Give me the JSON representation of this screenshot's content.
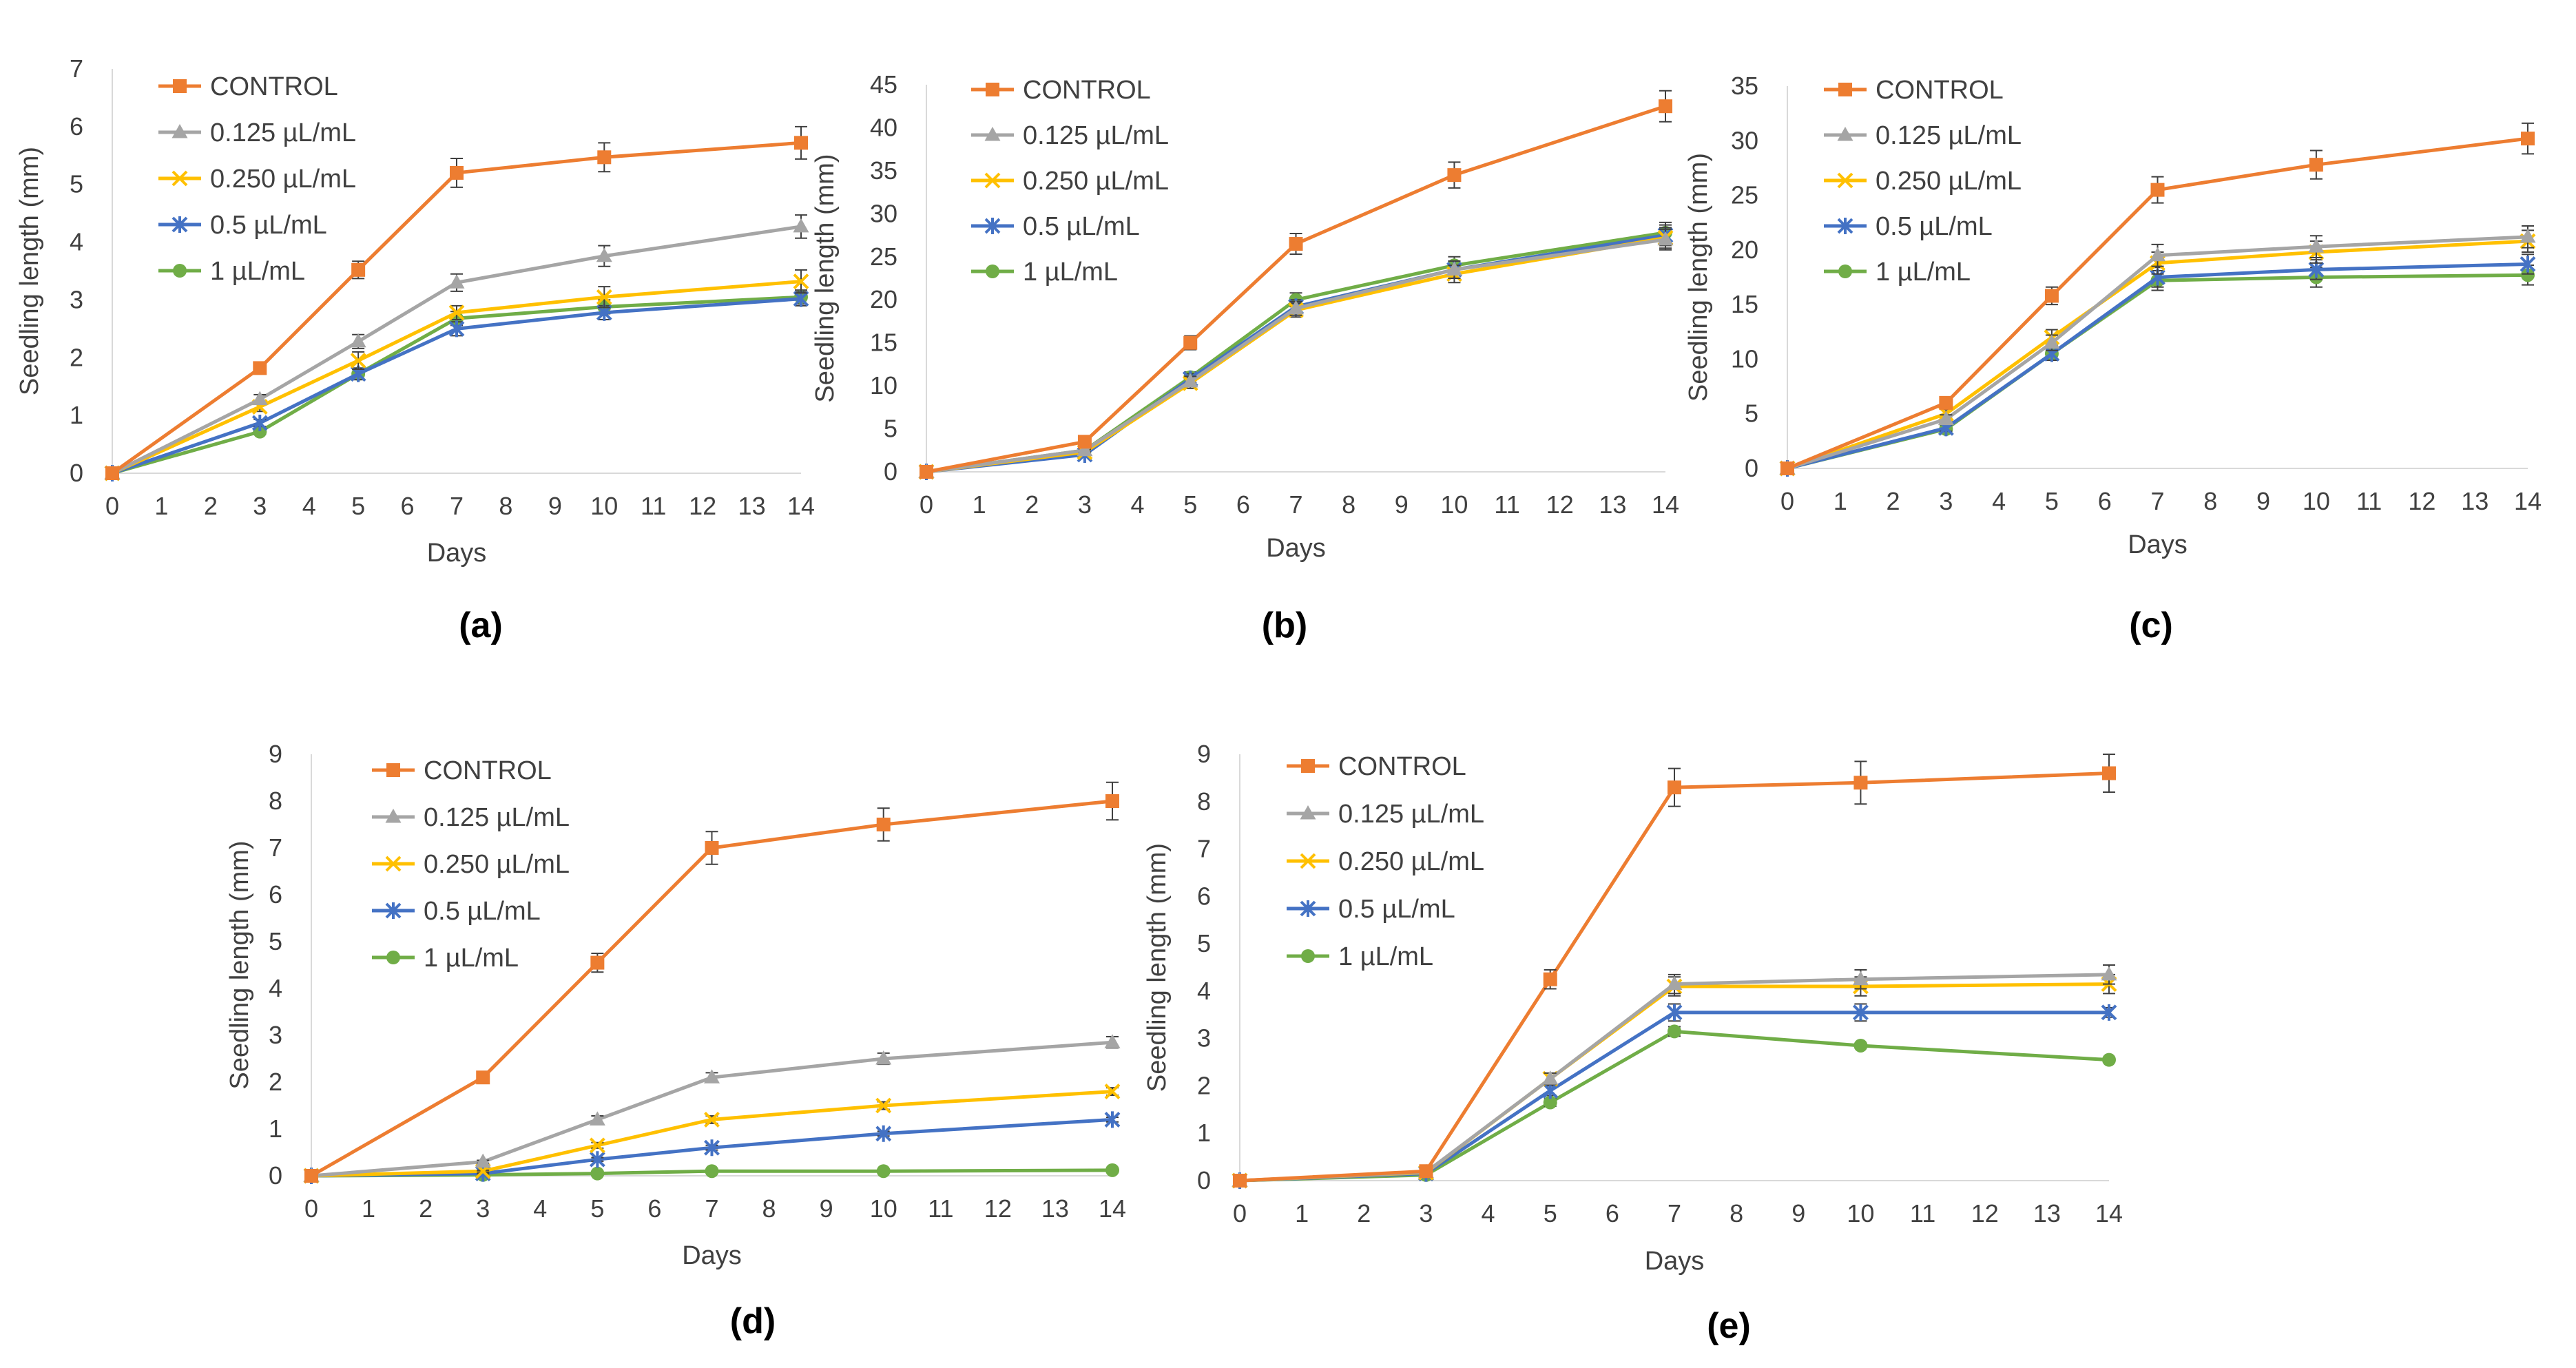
{
  "figure": {
    "colors": {
      "CONTROL": "#ED7D31",
      "0.125 µL/mL": "#A5A5A5",
      "0.250 µL/mL": "#FFC000",
      "0.5 µL/mL": "#4472C4",
      "1 µL/mL": "#70AD47",
      "axis": "#D9D9D9",
      "text": "#404040"
    },
    "markers": {
      "CONTROL": "square",
      "0.125 µL/mL": "triangle",
      "0.250 µL/mL": "x",
      "0.5 µL/mL": "star",
      "1 µL/mL": "circle"
    }
  },
  "chart_data": [
    {
      "type": "line",
      "label": "(a)",
      "xlabel": "Days",
      "ylabel": "Seedling length (mm)",
      "x_ticks": [
        0,
        1,
        2,
        3,
        4,
        5,
        6,
        7,
        8,
        9,
        10,
        11,
        12,
        13,
        14
      ],
      "xlim": [
        0,
        14
      ],
      "ylim": [
        0,
        7
      ],
      "y_ticks": [
        0,
        1,
        2,
        3,
        4,
        5,
        6,
        7
      ],
      "x": [
        0,
        3,
        5,
        7,
        10,
        14
      ],
      "series": [
        {
          "name": "CONTROL",
          "values": [
            0,
            1.82,
            3.52,
            5.2,
            5.47,
            5.72
          ],
          "errors": [
            0,
            0.08,
            0.15,
            0.25,
            0.25,
            0.28
          ]
        },
        {
          "name": "0.125 µL/mL",
          "values": [
            0,
            1.28,
            2.28,
            3.3,
            3.76,
            4.27
          ],
          "errors": [
            0,
            0.08,
            0.12,
            0.15,
            0.18,
            0.2
          ]
        },
        {
          "name": "0.250 µL/mL",
          "values": [
            0,
            1.15,
            1.95,
            2.78,
            3.05,
            3.32
          ],
          "errors": [
            0,
            0.08,
            0.15,
            0.12,
            0.18,
            0.2
          ]
        },
        {
          "name": "0.5 µL/mL",
          "values": [
            0,
            0.87,
            1.72,
            2.5,
            2.78,
            3.02
          ],
          "errors": [
            0,
            0.06,
            0.1,
            0.12,
            0.12,
            0.12
          ]
        },
        {
          "name": "1 µL/mL",
          "values": [
            0,
            0.72,
            1.72,
            2.68,
            2.88,
            3.05
          ],
          "errors": [
            0,
            0.05,
            0.1,
            0.12,
            0.12,
            0.12
          ]
        }
      ]
    },
    {
      "type": "line",
      "label": "(b)",
      "xlabel": "Days",
      "ylabel": "Seedling length (mm)",
      "x_ticks": [
        0,
        1,
        2,
        3,
        4,
        5,
        6,
        7,
        8,
        9,
        10,
        11,
        12,
        13,
        14
      ],
      "xlim": [
        0,
        14
      ],
      "ylim": [
        0,
        45
      ],
      "y_ticks": [
        0,
        5,
        10,
        15,
        20,
        25,
        30,
        35,
        40,
        45
      ],
      "x": [
        0,
        3,
        5,
        7,
        10,
        14
      ],
      "series": [
        {
          "name": "CONTROL",
          "values": [
            0,
            3.5,
            15,
            26.5,
            34.5,
            42.5
          ],
          "errors": [
            0,
            0.5,
            0.8,
            1.2,
            1.5,
            1.8
          ]
        },
        {
          "name": "0.125 µL/mL",
          "values": [
            0,
            2.5,
            10.5,
            19,
            23.5,
            27
          ],
          "errors": [
            0,
            0.3,
            0.6,
            0.8,
            1,
            1.2
          ]
        },
        {
          "name": "0.250 µL/mL",
          "values": [
            0,
            2.3,
            10.3,
            18.8,
            23,
            27.2
          ],
          "errors": [
            0,
            0.3,
            0.6,
            0.8,
            1,
            1.2
          ]
        },
        {
          "name": "0.5 µL/mL",
          "values": [
            0,
            2,
            10.8,
            19.2,
            23.5,
            27.5
          ],
          "errors": [
            0,
            0.3,
            0.6,
            0.8,
            1,
            1.2
          ]
        },
        {
          "name": "1 µL/mL",
          "values": [
            0,
            2.5,
            11,
            20,
            24,
            27.8
          ],
          "errors": [
            0,
            0.3,
            0.6,
            0.8,
            1,
            1.2
          ]
        }
      ]
    },
    {
      "type": "line",
      "label": "(c)",
      "xlabel": "Days",
      "ylabel": "Seedling length (mm)",
      "x_ticks": [
        0,
        1,
        2,
        3,
        4,
        5,
        6,
        7,
        8,
        9,
        10,
        11,
        12,
        13,
        14
      ],
      "xlim": [
        0,
        14
      ],
      "ylim": [
        0,
        35
      ],
      "y_ticks": [
        0,
        5,
        10,
        15,
        20,
        25,
        30,
        35
      ],
      "x": [
        0,
        3,
        5,
        7,
        10,
        14
      ],
      "series": [
        {
          "name": "CONTROL",
          "values": [
            0,
            6,
            15.8,
            25.5,
            27.8,
            30.2
          ],
          "errors": [
            0,
            0.5,
            0.8,
            1.2,
            1.3,
            1.4
          ]
        },
        {
          "name": "0.125 µL/mL",
          "values": [
            0,
            4.5,
            11.5,
            19.5,
            20.3,
            21.2
          ],
          "errors": [
            0,
            0.4,
            0.7,
            1,
            1,
            1
          ]
        },
        {
          "name": "0.250 µL/mL",
          "values": [
            0,
            5,
            12,
            18.8,
            19.8,
            20.8
          ],
          "errors": [
            0,
            0.4,
            0.7,
            1,
            1,
            1
          ]
        },
        {
          "name": "0.5 µL/mL",
          "values": [
            0,
            3.7,
            10.5,
            17.5,
            18.2,
            18.7
          ],
          "errors": [
            0,
            0.3,
            0.6,
            0.9,
            0.9,
            0.9
          ]
        },
        {
          "name": "1 µL/mL",
          "values": [
            0,
            3.6,
            10.5,
            17.2,
            17.5,
            17.7
          ],
          "errors": [
            0,
            0.3,
            0.6,
            0.9,
            0.9,
            0.9
          ]
        }
      ]
    },
    {
      "type": "line",
      "label": "(d)",
      "xlabel": "Days",
      "ylabel": "Seedling length (mm)",
      "x_ticks": [
        0,
        1,
        2,
        3,
        4,
        5,
        6,
        7,
        8,
        9,
        10,
        11,
        12,
        13,
        14
      ],
      "xlim": [
        0,
        14
      ],
      "ylim": [
        0,
        9
      ],
      "y_ticks": [
        0,
        1,
        2,
        3,
        4,
        5,
        6,
        7,
        8,
        9
      ],
      "x": [
        0,
        3,
        5,
        7,
        10,
        14
      ],
      "series": [
        {
          "name": "CONTROL",
          "values": [
            0,
            2.1,
            4.55,
            7,
            7.5,
            8
          ],
          "errors": [
            0,
            0.08,
            0.2,
            0.35,
            0.35,
            0.4
          ]
        },
        {
          "name": "0.125 µL/mL",
          "values": [
            0,
            0.3,
            1.2,
            2.1,
            2.5,
            2.85
          ],
          "errors": [
            0,
            0.03,
            0.08,
            0.1,
            0.12,
            0.12
          ]
        },
        {
          "name": "0.250 µL/mL",
          "values": [
            0,
            0.1,
            0.65,
            1.2,
            1.5,
            1.8
          ],
          "errors": [
            0,
            0.02,
            0.06,
            0.08,
            0.08,
            0.08
          ]
        },
        {
          "name": "0.5 µL/mL",
          "values": [
            0,
            0.05,
            0.35,
            0.6,
            0.9,
            1.2
          ],
          "errors": [
            0,
            0.01,
            0.04,
            0.05,
            0.05,
            0.05
          ]
        },
        {
          "name": "1 µL/mL",
          "values": [
            0,
            0.02,
            0.05,
            0.1,
            0.1,
            0.12
          ],
          "errors": [
            0,
            0,
            0,
            0,
            0,
            0
          ]
        }
      ]
    },
    {
      "type": "line",
      "label": "(e)",
      "xlabel": "Days",
      "ylabel": "Seedling length (mm)",
      "x_ticks": [
        0,
        1,
        2,
        3,
        4,
        5,
        6,
        7,
        8,
        9,
        10,
        11,
        12,
        13,
        14
      ],
      "xlim": [
        0,
        14
      ],
      "ylim": [
        0,
        9
      ],
      "y_ticks": [
        0,
        1,
        2,
        3,
        4,
        5,
        6,
        7,
        8,
        9
      ],
      "x": [
        0,
        3,
        5,
        7,
        10,
        14
      ],
      "series": [
        {
          "name": "CONTROL",
          "values": [
            0,
            0.2,
            4.25,
            8.3,
            8.4,
            8.6
          ],
          "errors": [
            0,
            0.02,
            0.2,
            0.4,
            0.45,
            0.4
          ]
        },
        {
          "name": "0.125 µL/mL",
          "values": [
            0,
            0.18,
            2.15,
            4.15,
            4.25,
            4.35
          ],
          "errors": [
            0,
            0.02,
            0.12,
            0.2,
            0.2,
            0.2
          ]
        },
        {
          "name": "0.250 µL/mL",
          "values": [
            0,
            0.17,
            2.15,
            4.1,
            4.1,
            4.15
          ],
          "errors": [
            0,
            0.02,
            0.12,
            0.2,
            0.2,
            0.2
          ]
        },
        {
          "name": "0.5 µL/mL",
          "values": [
            0,
            0.15,
            1.9,
            3.55,
            3.55,
            3.55
          ],
          "errors": [
            0,
            0.02,
            0.1,
            0.18,
            0.18,
            0.1
          ]
        },
        {
          "name": "1 µL/mL",
          "values": [
            0,
            0.12,
            1.65,
            3.15,
            2.85,
            2.55
          ],
          "errors": [
            0,
            0.01,
            0.08,
            0.1,
            0.05,
            0.05
          ]
        }
      ]
    }
  ]
}
